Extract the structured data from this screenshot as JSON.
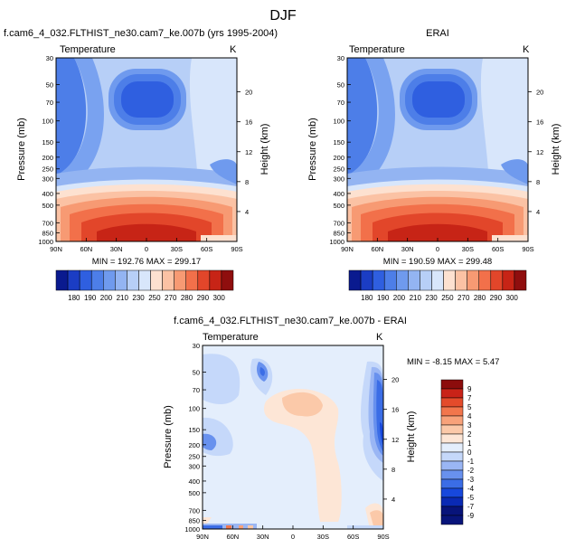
{
  "figure": {
    "title": "DJF"
  },
  "chart_data": [
    {
      "type": "heatmap",
      "title": "f.cam6_4_032.FLTHIST_ne30.cam7_ke.007b (yrs 1995-2004)",
      "variable": "Temperature",
      "units": "K",
      "ylabel": "Pressure (mb)",
      "ylabel_right": "Height (km)",
      "x_ticks": [
        "90N",
        "60N",
        "30N",
        "0",
        "30S",
        "60S",
        "90S"
      ],
      "y_ticks": [
        "30",
        "50",
        "70",
        "100",
        "150",
        "200",
        "250",
        "300",
        "400",
        "500",
        "700",
        "850",
        "1000"
      ],
      "height_ticks": [
        "20",
        "16",
        "12",
        "8",
        "4"
      ],
      "stats": "MIN = 192.76  MAX = 299.17",
      "colorbar_labels": [
        "180",
        "190",
        "200",
        "210",
        "230",
        "250",
        "270",
        "280",
        "290",
        "300"
      ]
    },
    {
      "type": "heatmap",
      "title": "ERAI",
      "variable": "Temperature",
      "units": "K",
      "ylabel": "Pressure (mb)",
      "ylabel_right": "Height (km)",
      "x_ticks": [
        "90N",
        "60N",
        "30N",
        "0",
        "30S",
        "60S",
        "90S"
      ],
      "y_ticks": [
        "30",
        "50",
        "70",
        "100",
        "150",
        "200",
        "250",
        "300",
        "400",
        "500",
        "700",
        "850",
        "1000"
      ],
      "height_ticks": [
        "20",
        "16",
        "12",
        "8",
        "4"
      ],
      "stats": "MIN = 190.59  MAX = 299.48",
      "colorbar_labels": [
        "180",
        "190",
        "200",
        "210",
        "230",
        "250",
        "270",
        "280",
        "290",
        "300"
      ]
    },
    {
      "type": "heatmap",
      "title": "f.cam6_4_032.FLTHIST_ne30.cam7_ke.007b - ERAI",
      "variable": "Temperature",
      "units": "K",
      "ylabel": "Pressure (mb)",
      "ylabel_right": "Height (km)",
      "x_ticks": [
        "90N",
        "60N",
        "30N",
        "0",
        "30S",
        "60S",
        "90S"
      ],
      "y_ticks": [
        "30",
        "50",
        "70",
        "100",
        "150",
        "200",
        "250",
        "300",
        "400",
        "500",
        "700",
        "850",
        "1000"
      ],
      "height_ticks": [
        "20",
        "16",
        "12",
        "8",
        "4"
      ],
      "stats": "MIN =  -8.15  MAX =   5.47",
      "colorbar_labels": [
        "9",
        "7",
        "5",
        "4",
        "3",
        "2",
        "1",
        "0",
        "-1",
        "-2",
        "-3",
        "-4",
        "-5",
        "-7",
        "-9"
      ]
    }
  ],
  "colors": {
    "abs_scale": [
      "#0a1a8f",
      "#1b3dc4",
      "#2f5fe0",
      "#4d7ee8",
      "#6f9aee",
      "#93b4f2",
      "#b7cff7",
      "#d8e6fb",
      "#fde1d0",
      "#fbc2a4",
      "#f79a73",
      "#f2704a",
      "#e2462a",
      "#c72416",
      "#8f0e0e"
    ],
    "diff_scale": [
      "#08147a",
      "#0a2ab4",
      "#1748dc",
      "#3b6de6",
      "#6891ee",
      "#9ab6f4",
      "#c5d8fa",
      "#e4eefc",
      "#fde6d6",
      "#fbc9a9",
      "#f8a27a",
      "#f2764c",
      "#e44b2b",
      "#c92318",
      "#8c0c0c"
    ]
  }
}
